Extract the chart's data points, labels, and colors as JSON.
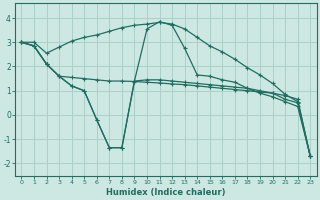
{
  "xlabel": "Humidex (Indice chaleur)",
  "xlim": [
    -0.5,
    23.5
  ],
  "ylim": [
    -2.5,
    4.6
  ],
  "yticks": [
    -2,
    -1,
    0,
    1,
    2,
    3,
    4
  ],
  "xticks": [
    0,
    1,
    2,
    3,
    4,
    5,
    6,
    7,
    8,
    9,
    10,
    11,
    12,
    13,
    14,
    15,
    16,
    17,
    18,
    19,
    20,
    21,
    22,
    23
  ],
  "bg_color": "#cde8e2",
  "grid_color": "#aad0c8",
  "line_color": "#1e6e62",
  "line1_x": [
    0,
    1,
    2,
    3,
    4,
    5,
    6,
    7,
    8,
    9,
    10,
    11,
    12,
    13,
    14,
    15,
    16,
    17,
    18,
    19,
    20,
    21,
    22,
    23
  ],
  "line1_y": [
    3.0,
    2.85,
    2.1,
    1.6,
    1.55,
    1.5,
    1.45,
    1.4,
    1.4,
    1.38,
    1.35,
    1.32,
    1.28,
    1.25,
    1.2,
    1.15,
    1.1,
    1.05,
    1.0,
    0.95,
    0.9,
    0.8,
    0.65,
    -1.7
  ],
  "line2_x": [
    0,
    1,
    2,
    3,
    4,
    5,
    6,
    7,
    8,
    9,
    10,
    11,
    12,
    13,
    14,
    15,
    16,
    17,
    18,
    19,
    20,
    21,
    22,
    23
  ],
  "line2_y": [
    3.0,
    2.85,
    2.1,
    1.6,
    1.2,
    1.0,
    -0.2,
    -1.35,
    -1.35,
    1.4,
    1.45,
    1.45,
    1.4,
    1.35,
    1.3,
    1.25,
    1.2,
    1.15,
    1.1,
    1.0,
    0.9,
    0.65,
    0.5,
    -1.7
  ],
  "line3_x": [
    0,
    1,
    2,
    3,
    4,
    5,
    6,
    7,
    8,
    9,
    10,
    11,
    12,
    13,
    14,
    15,
    16,
    17,
    18,
    19,
    20,
    21,
    22,
    23
  ],
  "line3_y": [
    3.0,
    2.85,
    2.1,
    1.6,
    1.2,
    1.0,
    -0.2,
    -1.35,
    -1.35,
    1.4,
    3.55,
    3.85,
    3.7,
    2.75,
    1.65,
    1.6,
    1.45,
    1.35,
    1.1,
    0.9,
    0.75,
    0.55,
    0.35,
    -1.7
  ],
  "line4_x": [
    0,
    1,
    2,
    3,
    4,
    5,
    6,
    7,
    8,
    9,
    10,
    11,
    12,
    13,
    14,
    15,
    16,
    17,
    18,
    19,
    20,
    21,
    22,
    23
  ],
  "line4_y": [
    3.0,
    3.0,
    2.55,
    2.8,
    3.05,
    3.2,
    3.3,
    3.45,
    3.6,
    3.7,
    3.75,
    3.82,
    3.75,
    3.55,
    3.2,
    2.85,
    2.6,
    2.3,
    1.95,
    1.65,
    1.3,
    0.85,
    0.55,
    -1.7
  ]
}
